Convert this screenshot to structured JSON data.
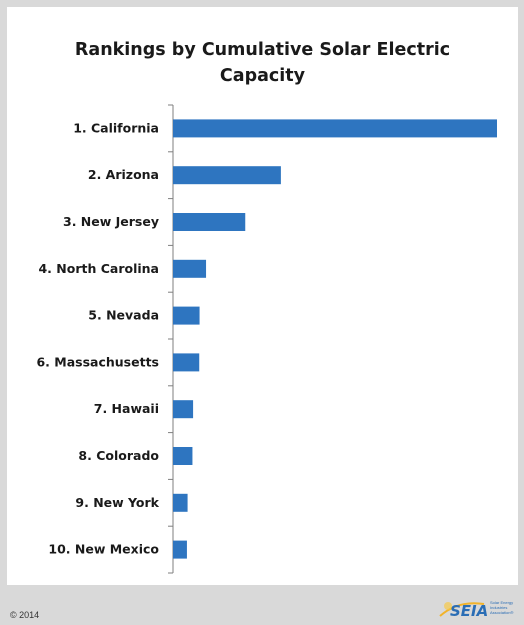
{
  "chart_data": {
    "type": "bar",
    "orientation": "horizontal",
    "title": "Rankings by Cumulative Solar Electric Capacity",
    "title_lines": [
      "Rankings by Cumulative Solar Electric",
      "Capacity"
    ],
    "categories": [
      "1. California",
      "2. Arizona",
      "3. New Jersey",
      "4. North Carolina",
      "5. Nevada",
      "6. Massachusetts",
      "7. Hawaii",
      "8. Colorado",
      "9. New York",
      "10. New Mexico"
    ],
    "values": [
      100,
      33.3,
      22.3,
      10.2,
      8.2,
      8.1,
      6.2,
      6.0,
      4.5,
      4.3
    ],
    "value_scale": "relative (no value axis printed)",
    "xlim": [
      0,
      100
    ],
    "xlabel": "",
    "ylabel": "",
    "grid": false,
    "legend": "none",
    "bar_color": "#2e75c0"
  },
  "footer": {
    "copyright": "© 2014",
    "logo_text": "SEIA",
    "logo_tagline": "Solar Energy Industries Association®"
  },
  "colors": {
    "background": "#d9d9d9",
    "panel": "#ffffff",
    "bar": "#2e75c0",
    "logo": "#2a6db5"
  }
}
